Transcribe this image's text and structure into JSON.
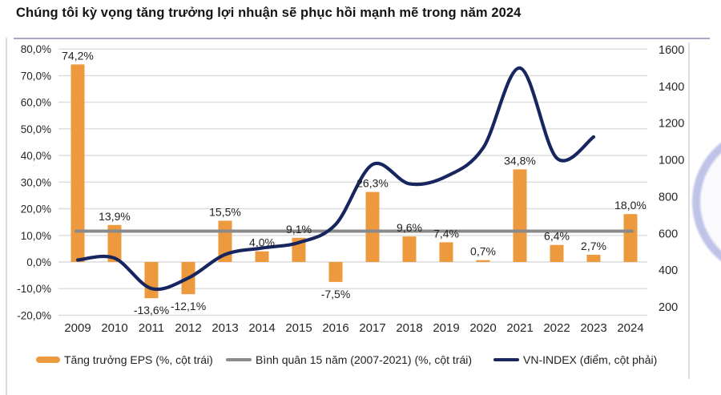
{
  "header": {
    "title": "Chúng tôi kỳ vọng tăng trưởng lợi nhuận sẽ phục hồi mạnh mẽ trong năm 2024"
  },
  "colors": {
    "bar": "#EC9A3D",
    "vnindex": "#17265F",
    "average": "#8A8A8A",
    "grid": "#DCDCDC",
    "text": "#262626",
    "label": "#1F1F1F",
    "border_top": "#A3A7C7",
    "watermark": "#7B80CF"
  },
  "legend": [
    {
      "label": "Tăng trưởng EPS (%, cột trái)",
      "swatch": "bar-orange"
    },
    {
      "label": "Bình quân 15 năm (2007-2021) (%, cột trái)",
      "swatch": "line-gray"
    },
    {
      "label": "VN-INDEX (điểm, cột phải)",
      "swatch": "line-navy"
    }
  ],
  "chart_data": {
    "type": "bar",
    "subtype": "combo-bar-line-dual-axis",
    "title": "Chúng tôi kỳ vọng tăng trưởng lợi nhuận sẽ phục hồi mạnh mẽ trong năm 2024",
    "categories": [
      "2009",
      "2010",
      "2011",
      "2012",
      "2013",
      "2014",
      "2015",
      "2016",
      "2017",
      "2018",
      "2019",
      "2020",
      "2021",
      "2022",
      "2023",
      "2024"
    ],
    "series": [
      {
        "name": "Tăng trưởng EPS (%, cột trái)",
        "type": "bar",
        "axis": "left",
        "values": [
          74.2,
          13.9,
          -13.6,
          -12.1,
          15.5,
          4.0,
          9.1,
          -7.5,
          26.3,
          9.6,
          7.4,
          0.7,
          34.8,
          6.4,
          2.7,
          18.0
        ],
        "labels": [
          "74,2%",
          "13,9%",
          "-13,6%",
          "-12,1%",
          "15,5%",
          "4,0%",
          "9,1%",
          "-7,5%",
          "26,3%",
          "9,6%",
          "7,4%",
          "0,7%",
          "34,8%",
          "6,4%",
          "2,7%",
          "18,0%"
        ]
      },
      {
        "name": "Bình quân 15 năm (2007-2021) (%, cột trái)",
        "type": "line-constant",
        "axis": "left",
        "value": 11.6
      },
      {
        "name": "VN-INDEX (điểm, cột phải)",
        "type": "line-smooth",
        "axis": "right",
        "x": [
          "2009",
          "2010",
          "2011",
          "2012",
          "2013",
          "2014",
          "2015",
          "2016",
          "2017",
          "2018",
          "2019",
          "2020",
          "2021",
          "2022",
          "2023"
        ],
        "values": [
          455,
          465,
          300,
          357,
          485,
          520,
          550,
          649,
          975,
          870,
          910,
          1065,
          1500,
          1010,
          1125
        ]
      }
    ],
    "left_axis": {
      "ticks": [
        "80,0%",
        "70,0%",
        "60,0%",
        "50,0%",
        "40,0%",
        "30,0%",
        "20,0%",
        "10,0%",
        "0,0%",
        "-10,0%",
        "-20,0%"
      ],
      "tick_values": [
        80,
        70,
        60,
        50,
        40,
        30,
        20,
        10,
        0,
        -10,
        -20
      ],
      "range": [
        -20,
        80
      ]
    },
    "right_axis": {
      "ticks": [
        "1600",
        "1400",
        "1200",
        "1000",
        "800",
        "600",
        "400",
        "200"
      ],
      "tick_values": [
        1600,
        1400,
        1200,
        1000,
        800,
        600,
        400,
        200
      ],
      "range": [
        200,
        1600
      ]
    },
    "grid": true,
    "legend_position": "bottom"
  }
}
